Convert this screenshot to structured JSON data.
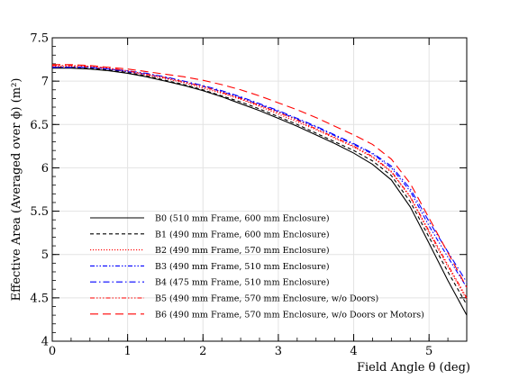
{
  "chart_data": {
    "type": "line",
    "xlabel": "Field Angle θ (deg)",
    "ylabel": "Effective Area (Averaged over ϕ) (m²)",
    "xlim": [
      0,
      5.5
    ],
    "ylim": [
      4,
      7.5
    ],
    "x_ticks": [
      "0",
      "1",
      "2",
      "3",
      "4",
      "5"
    ],
    "y_ticks": [
      "4",
      "4.5",
      "5",
      "5.5",
      "6",
      "6.5",
      "7",
      "7.5"
    ],
    "grid": true,
    "legend_position": "lower-left",
    "x": [
      0,
      0.25,
      0.5,
      0.75,
      1.0,
      1.25,
      1.5,
      1.75,
      2.0,
      2.25,
      2.5,
      2.75,
      3.0,
      3.25,
      3.5,
      3.75,
      4.0,
      4.25,
      4.5,
      4.75,
      5.0,
      5.25,
      5.5
    ],
    "series": [
      {
        "name": "B0 (510 mm Frame, 600 mm Enclosure)",
        "color": "#000000",
        "dash": "solid",
        "values": [
          7.15,
          7.15,
          7.14,
          7.12,
          7.09,
          7.05,
          7.0,
          6.95,
          6.89,
          6.82,
          6.74,
          6.66,
          6.57,
          6.48,
          6.38,
          6.28,
          6.17,
          6.04,
          5.86,
          5.55,
          5.13,
          4.7,
          4.3
        ]
      },
      {
        "name": "B1 (490 mm Frame, 600 mm Enclosure)",
        "color": "#000000",
        "dash": "dash",
        "values": [
          7.16,
          7.16,
          7.15,
          7.13,
          7.1,
          7.06,
          7.01,
          6.96,
          6.9,
          6.83,
          6.76,
          6.68,
          6.59,
          6.5,
          6.4,
          6.3,
          6.2,
          6.08,
          5.91,
          5.61,
          5.2,
          4.8,
          4.42
        ]
      },
      {
        "name": "B2 (490 mm Frame, 570 mm Enclosure)",
        "color": "#ff0000",
        "dash": "dot",
        "values": [
          7.17,
          7.17,
          7.16,
          7.14,
          7.11,
          7.07,
          7.03,
          6.98,
          6.92,
          6.86,
          6.79,
          6.71,
          6.62,
          6.53,
          6.44,
          6.34,
          6.24,
          6.12,
          5.95,
          5.66,
          5.25,
          4.86,
          4.48
        ]
      },
      {
        "name": "B3 (490 mm Frame, 510 mm Enclosure)",
        "color": "#0000ff",
        "dash": "dashdotdot",
        "values": [
          7.16,
          7.16,
          7.16,
          7.14,
          7.11,
          7.08,
          7.04,
          6.99,
          6.94,
          6.88,
          6.81,
          6.73,
          6.65,
          6.56,
          6.47,
          6.37,
          6.27,
          6.16,
          6.0,
          5.73,
          5.33,
          4.97,
          4.62
        ]
      },
      {
        "name": "B4 (475 mm Frame, 510 mm Enclosure)",
        "color": "#0000ff",
        "dash": "dashdot",
        "values": [
          7.16,
          7.16,
          7.16,
          7.14,
          7.12,
          7.09,
          7.05,
          7.0,
          6.95,
          6.89,
          6.82,
          6.74,
          6.66,
          6.57,
          6.48,
          6.38,
          6.28,
          6.17,
          6.02,
          5.76,
          5.38,
          5.03,
          4.68
        ]
      },
      {
        "name": "B5 (490 mm Frame, 570 mm Enclosure, w/o Doors)",
        "color": "#ff0000",
        "dash": "dashdotdotdot",
        "values": [
          7.18,
          7.18,
          7.17,
          7.15,
          7.12,
          7.08,
          7.04,
          6.99,
          6.94,
          6.87,
          6.8,
          6.72,
          6.64,
          6.55,
          6.45,
          6.35,
          6.25,
          6.13,
          5.96,
          5.67,
          5.27,
          4.88,
          4.5
        ]
      },
      {
        "name": "B6 (490 mm Frame, 570 mm Enclosure, w/o Doors or Motors)",
        "color": "#ff0000",
        "dash": "longdash",
        "values": [
          7.19,
          7.19,
          7.18,
          7.16,
          7.14,
          7.11,
          7.08,
          7.05,
          7.01,
          6.96,
          6.9,
          6.83,
          6.75,
          6.67,
          6.58,
          6.48,
          6.38,
          6.27,
          6.1,
          5.82,
          5.42,
          5.02,
          4.62
        ]
      }
    ]
  }
}
